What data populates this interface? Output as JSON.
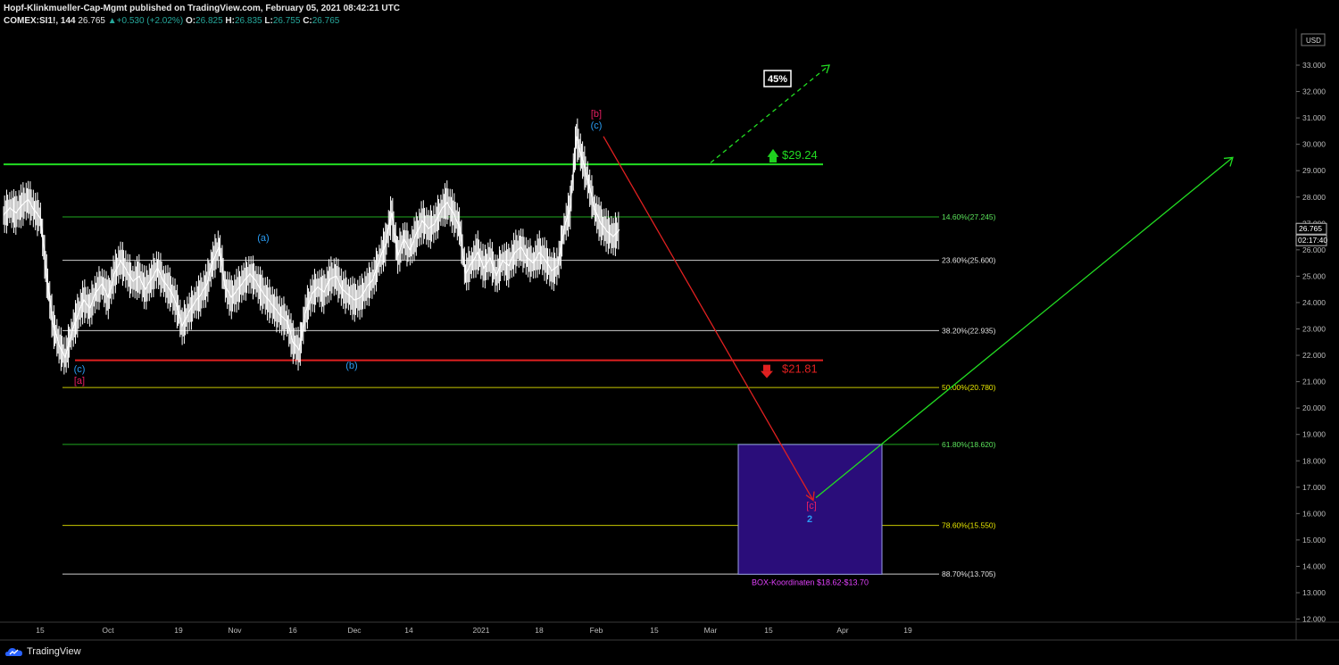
{
  "header": {
    "publisher_line": "Hopf-Klinkmueller-Cap-Mgmt published on TradingView.com, February 05, 2021 08:42:21 UTC",
    "symbol": "COMEX:SI1!, 144",
    "last": "26.765",
    "change": "+0.530 (+2.02%)",
    "open_label": "O:",
    "open": "26.825",
    "high_label": "H:",
    "high": "26.835",
    "low_label": "L:",
    "low": "26.755",
    "close_label": "C:",
    "close": "26.765"
  },
  "footer": {
    "brand": "TradingView"
  },
  "colors": {
    "background": "#000000",
    "candles": "#ffffff",
    "resistance": "#22dd22",
    "support": "#e02020",
    "fib_white": "#cccccc",
    "fib_green": "#1fa81f",
    "fib_yellow": "#c8c800",
    "box_fill": "#2a0d7a",
    "box_label": "#e040fb",
    "wave_blue": "#2a9df4",
    "wave_red": "#e91e63"
  },
  "chart_data": {
    "type": "candlestick",
    "symbol": "COMEX:SI1!",
    "interval": "144",
    "currency": "USD",
    "ylim": [
      12.0,
      34.0
    ],
    "y_ticks": [
      "12.000",
      "13.000",
      "14.000",
      "15.000",
      "16.000",
      "17.000",
      "18.000",
      "19.000",
      "20.000",
      "21.000",
      "22.000",
      "23.000",
      "24.000",
      "25.000",
      "26.000",
      "27.000",
      "28.000",
      "29.000",
      "30.000",
      "31.000",
      "32.000",
      "33.000"
    ],
    "y_top_tick_partial": "34",
    "x_ticks": [
      "15",
      "Oct",
      "19",
      "Nov",
      "16",
      "Dec",
      "14",
      "2021",
      "18",
      "Feb",
      "15",
      "Mar",
      "15",
      "Apr",
      "19"
    ],
    "last_price_label": "26.765",
    "countdown_label": "02:17:40",
    "fib_levels": [
      {
        "label": "14.60%(27.245)",
        "value": 27.245,
        "color": "green"
      },
      {
        "label": "23.60%(25.600)",
        "value": 25.6,
        "color": "white"
      },
      {
        "label": "38.20%(22.935)",
        "value": 22.935,
        "color": "white"
      },
      {
        "label": "50.00%(20.780)",
        "value": 20.78,
        "color": "yellow"
      },
      {
        "label": "61.80%(18.620)",
        "value": 18.62,
        "color": "green"
      },
      {
        "label": "78.60%(15.550)",
        "value": 15.55,
        "color": "yellow"
      },
      {
        "label": "88.70%(13.705)",
        "value": 13.705,
        "color": "white"
      }
    ],
    "resistance": {
      "label": "$29.24",
      "value": 29.24
    },
    "support": {
      "label": "$21.81",
      "value": 21.81
    },
    "target_percent_label": "45%",
    "box": {
      "label": "BOX-Koordinaten $18.62-$13.70",
      "top": 18.62,
      "bottom": 13.7
    },
    "wave_labels": [
      {
        "text": "(c)",
        "color": "blue",
        "anchor": "low-1"
      },
      {
        "text": "[a]",
        "color": "red",
        "anchor": "low-1"
      },
      {
        "text": "(a)",
        "color": "blue",
        "anchor": "peak-nov"
      },
      {
        "text": "(b)",
        "color": "blue",
        "anchor": "low-dec"
      },
      {
        "text": "[b]",
        "color": "red",
        "anchor": "peak-feb"
      },
      {
        "text": "(c)",
        "color": "blue",
        "anchor": "peak-feb"
      },
      {
        "text": "[c]",
        "color": "red",
        "anchor": "target"
      },
      {
        "text": "2",
        "color": "blue",
        "anchor": "target"
      }
    ],
    "price_path": [
      [
        0,
        27.3
      ],
      [
        1,
        27.6
      ],
      [
        2,
        27.4
      ],
      [
        3,
        27.7
      ],
      [
        4,
        27.9
      ],
      [
        5,
        27.5
      ],
      [
        6,
        27.2
      ],
      [
        7,
        25.0
      ],
      [
        8,
        23.2
      ],
      [
        9,
        22.4
      ],
      [
        10,
        21.9
      ],
      [
        11,
        22.8
      ],
      [
        12,
        23.5
      ],
      [
        13,
        24.1
      ],
      [
        14,
        23.8
      ],
      [
        15,
        24.4
      ],
      [
        16,
        24.7
      ],
      [
        17,
        24.2
      ],
      [
        18,
        25.1
      ],
      [
        19,
        25.6
      ],
      [
        20,
        25.2
      ],
      [
        21,
        24.8
      ],
      [
        22,
        25.0
      ],
      [
        23,
        24.5
      ],
      [
        24,
        24.9
      ],
      [
        25,
        25.3
      ],
      [
        26,
        24.8
      ],
      [
        27,
        24.5
      ],
      [
        28,
        24.0
      ],
      [
        29,
        23.1
      ],
      [
        30,
        23.6
      ],
      [
        31,
        24.0
      ],
      [
        32,
        24.3
      ],
      [
        33,
        24.7
      ],
      [
        34,
        25.6
      ],
      [
        35,
        26.1
      ],
      [
        36,
        24.6
      ],
      [
        37,
        24.2
      ],
      [
        38,
        24.5
      ],
      [
        39,
        24.8
      ],
      [
        40,
        25.1
      ],
      [
        41,
        24.8
      ],
      [
        42,
        24.4
      ],
      [
        43,
        24.1
      ],
      [
        44,
        23.8
      ],
      [
        45,
        23.5
      ],
      [
        46,
        23.3
      ],
      [
        47,
        22.5
      ],
      [
        48,
        22.2
      ],
      [
        49,
        23.6
      ],
      [
        50,
        24.3
      ],
      [
        51,
        24.6
      ],
      [
        52,
        24.4
      ],
      [
        53,
        24.9
      ],
      [
        54,
        25.0
      ],
      [
        55,
        24.5
      ],
      [
        56,
        24.3
      ],
      [
        57,
        24.1
      ],
      [
        58,
        24.2
      ],
      [
        59,
        24.6
      ],
      [
        60,
        24.9
      ],
      [
        61,
        25.6
      ],
      [
        62,
        26.2
      ],
      [
        63,
        27.4
      ],
      [
        64,
        25.8
      ],
      [
        65,
        26.4
      ],
      [
        66,
        26.0
      ],
      [
        67,
        26.6
      ],
      [
        68,
        27.1
      ],
      [
        69,
        26.8
      ],
      [
        70,
        27.0
      ],
      [
        71,
        27.5
      ],
      [
        72,
        27.8
      ],
      [
        73,
        27.4
      ],
      [
        74,
        26.9
      ],
      [
        75,
        25.1
      ],
      [
        76,
        25.5
      ],
      [
        77,
        25.9
      ],
      [
        78,
        25.3
      ],
      [
        79,
        25.7
      ],
      [
        80,
        25.0
      ],
      [
        81,
        25.6
      ],
      [
        82,
        25.4
      ],
      [
        83,
        25.9
      ],
      [
        84,
        26.1
      ],
      [
        85,
        25.7
      ],
      [
        86,
        25.5
      ],
      [
        87,
        25.9
      ],
      [
        88,
        25.6
      ],
      [
        89,
        25.2
      ],
      [
        90,
        25.4
      ],
      [
        91,
        26.8
      ],
      [
        92,
        27.6
      ],
      [
        93,
        30.3
      ],
      [
        94,
        29.4
      ],
      [
        95,
        28.5
      ],
      [
        96,
        27.5
      ],
      [
        97,
        27.0
      ],
      [
        98,
        26.7
      ],
      [
        99,
        26.5
      ],
      [
        100,
        26.77
      ]
    ],
    "projections": [
      {
        "type": "down",
        "from": {
          "time": "Feb 1",
          "value": 30.3
        },
        "to": {
          "time": "late Mar",
          "value": 16.5
        }
      },
      {
        "type": "up",
        "from": {
          "time": "late Mar",
          "value": 16.6
        },
        "to": {
          "time": "mid May",
          "value": 29.5
        }
      },
      {
        "type": "dashed-up",
        "from": {
          "time": "early Mar",
          "value": 29.3
        },
        "to": {
          "time": "early Apr",
          "value": 33.0
        }
      }
    ]
  }
}
